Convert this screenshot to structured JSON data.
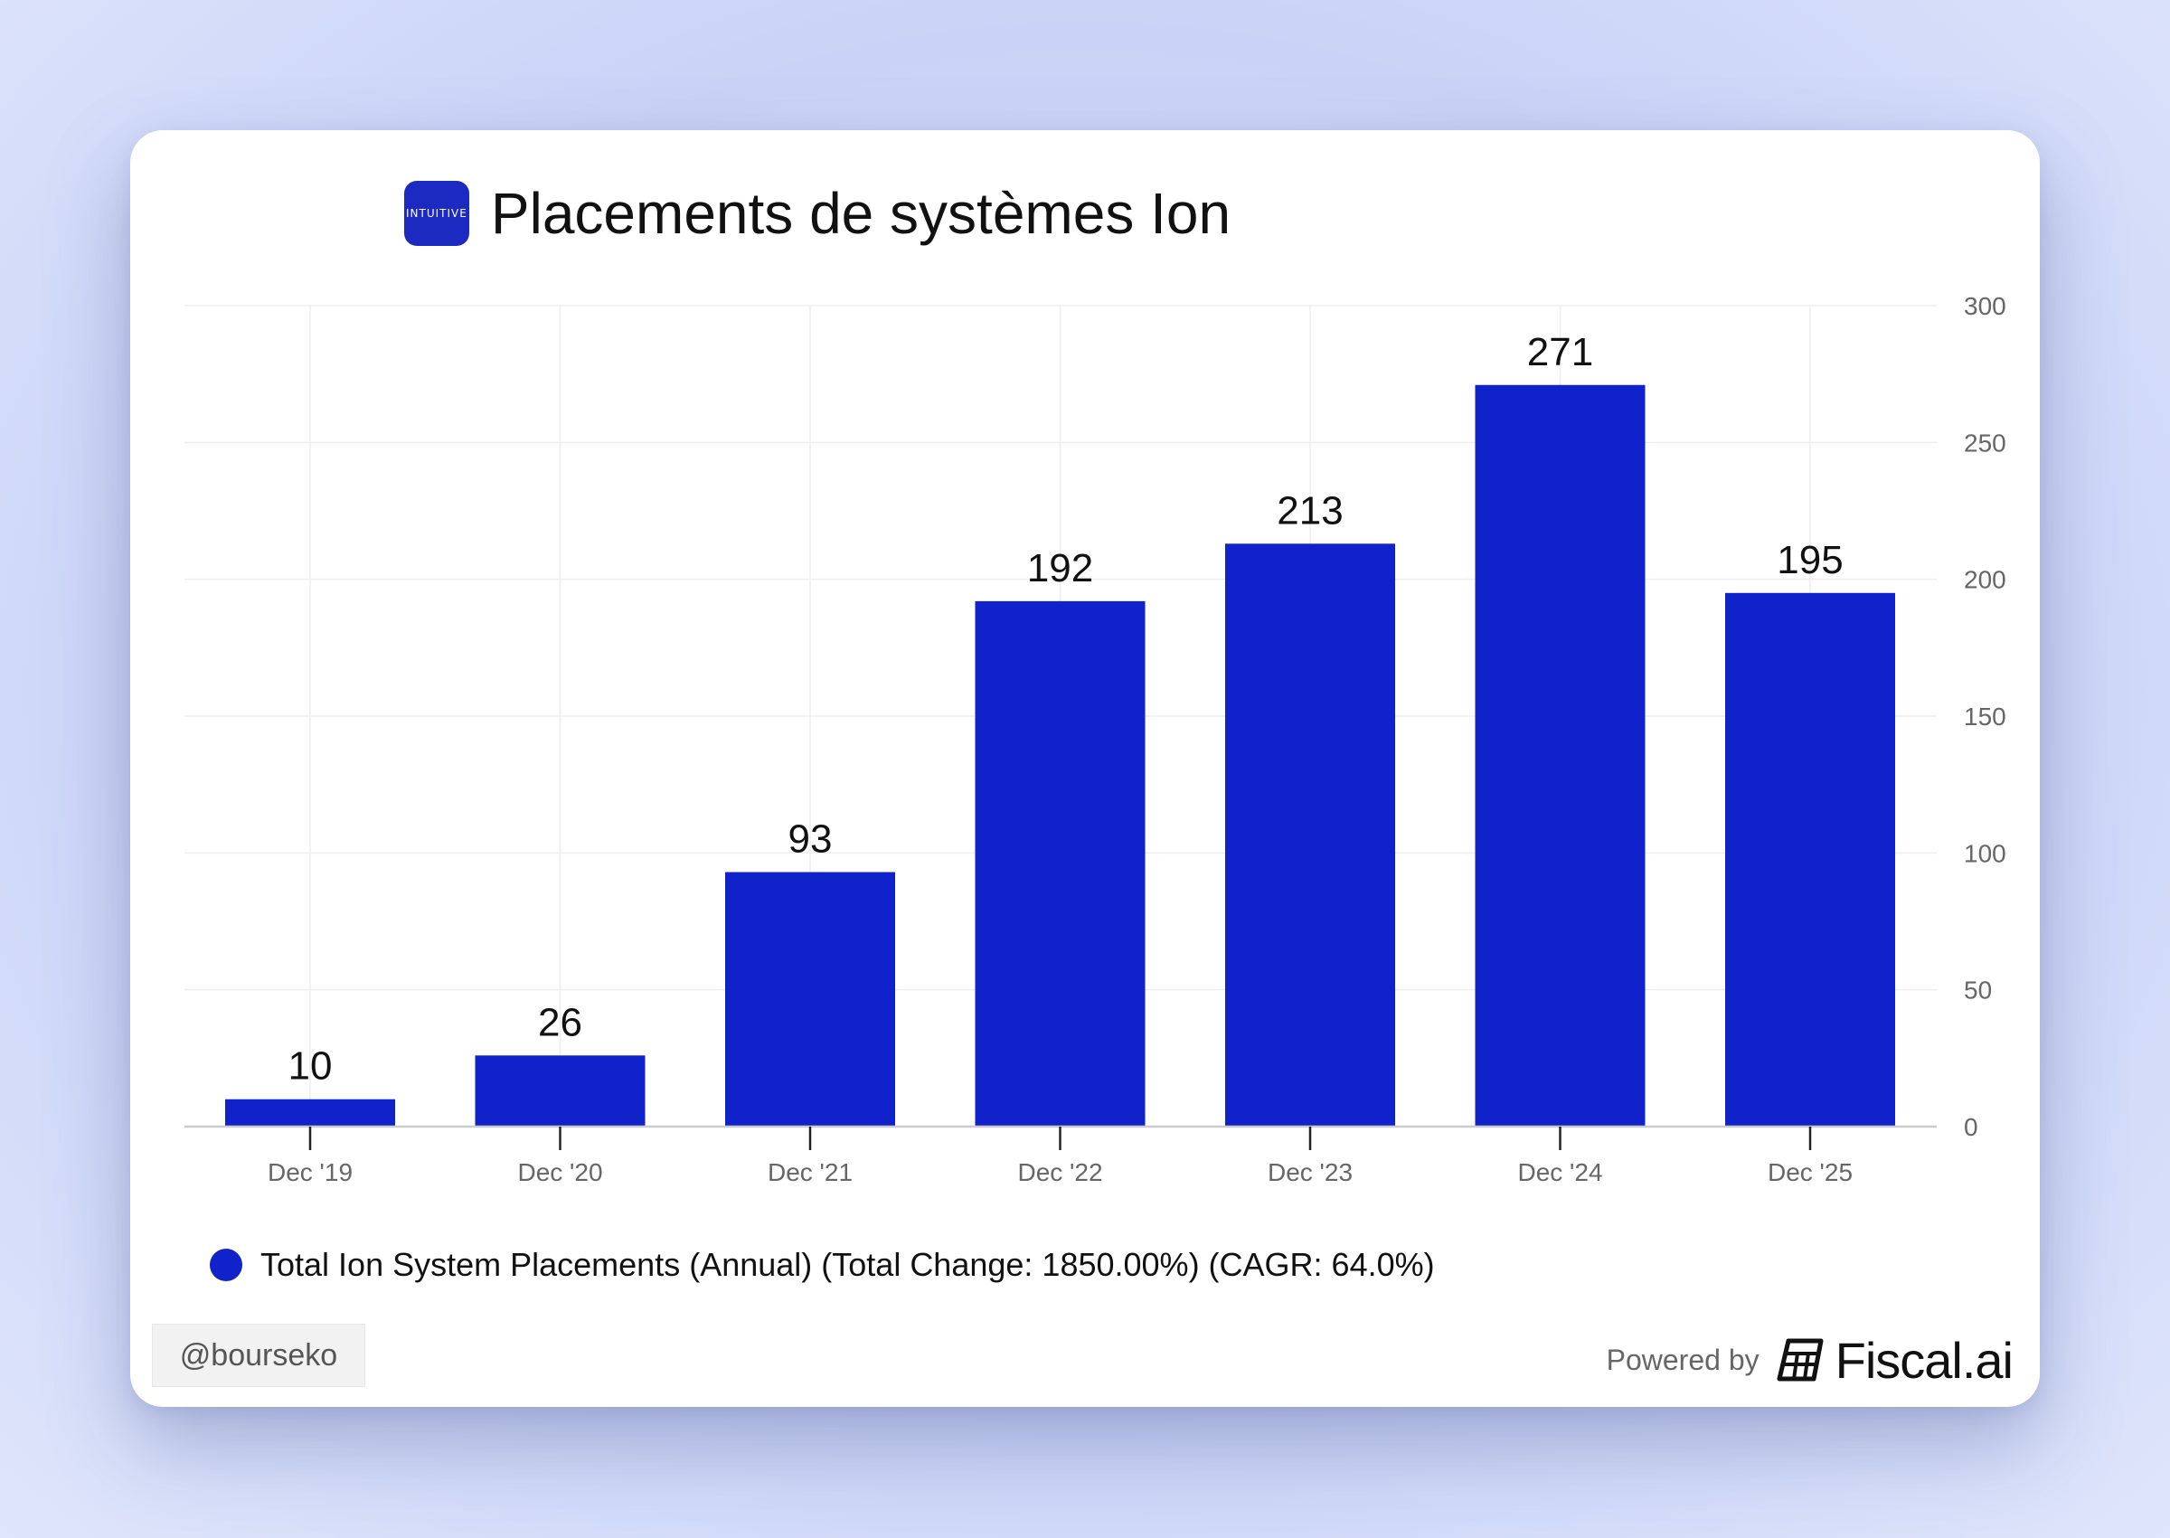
{
  "header": {
    "logo_text": "INTUITIVE",
    "title": "Placements de systèmes Ion"
  },
  "legend": {
    "label": "Total Ion System Placements (Annual) (Total Change: 1850.00%) (CAGR: 64.0%)"
  },
  "footer": {
    "watermark": "@bourseko",
    "powered_by": "Powered by",
    "brand": "Fiscal.ai"
  },
  "colors": {
    "bar": "#1023cb",
    "grid": "#eeeeee",
    "axis": "#cccccc",
    "tick_text": "#666666"
  },
  "chart_data": {
    "type": "bar",
    "title": "Placements de systèmes Ion",
    "categories": [
      "Dec '19",
      "Dec '20",
      "Dec '21",
      "Dec '22",
      "Dec '23",
      "Dec '24",
      "Dec '25"
    ],
    "series": [
      {
        "name": "Total Ion System Placements (Annual) (Total Change: 1850.00%) (CAGR: 64.0%)",
        "values": [
          10,
          26,
          93,
          192,
          213,
          271,
          195
        ]
      }
    ],
    "y_ticks": [
      0,
      50,
      100,
      150,
      200,
      250,
      300
    ],
    "ylim": [
      0,
      300
    ],
    "y_axis_side": "right",
    "grid": true,
    "legend_position": "bottom-left",
    "xlabel": "",
    "ylabel": ""
  }
}
